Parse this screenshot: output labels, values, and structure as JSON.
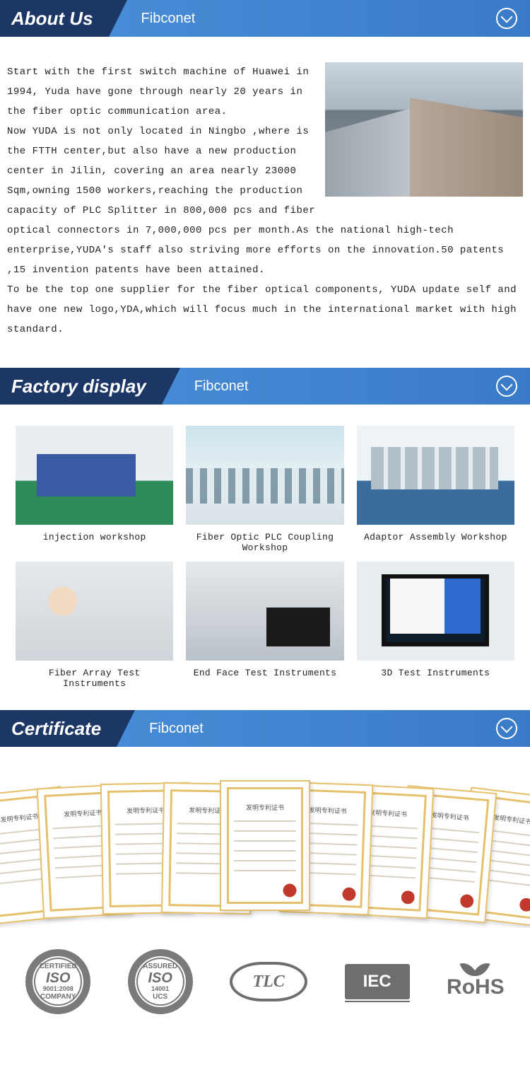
{
  "brand": "Fibconet",
  "colors": {
    "header_dark": "#1c3766",
    "header_grad_from": "#4a90d9",
    "header_grad_to": "#3a7bc8",
    "text": "#222222",
    "badge_gray": "#6e6e6e",
    "cert_border": "#e6c06a"
  },
  "sections": {
    "about": {
      "title": "About Us"
    },
    "factory": {
      "title": "Factory display"
    },
    "certificate": {
      "title": "Certificate"
    }
  },
  "about_text": "Start with the first switch machine of Huawei in 1994, Yuda have gone through nearly 20 years in the fiber optic communication area.\nNow YUDA is not only located in Ningbo ,where is the FTTH center,but also have a new production center in Jilin, covering an area nearly 23000 Sqm,owning 1500 workers,reaching the production capacity  of  PLC Splitter in 800,000 pcs and fiber optical connectors in 7,000,000 pcs per month.As the national high-tech enterprise,YUDA's staff also striving more efforts on the innovation.50 patents ,15 invention patents have been attained.\nTo be the top one supplier for the fiber optical components, YUDA update self and have one new logo,YDA,which will focus much in the international market with high standard.",
  "gallery": [
    {
      "caption": "injection workshop",
      "cls": "ws-inj"
    },
    {
      "caption": "Fiber Optic PLC Coupling Workshop",
      "cls": "ws-plc"
    },
    {
      "caption": "Adaptor Assembly Workshop",
      "cls": "ws-adp"
    },
    {
      "caption": "Fiber Array Test Instruments",
      "cls": "ws-arr"
    },
    {
      "caption": "End Face Test Instruments",
      "cls": "ws-end"
    },
    {
      "caption": "3D Test Instruments",
      "cls": "ws-3d"
    }
  ],
  "cert_doc_title": "发明专利证书",
  "cert_count": 9,
  "badges": {
    "iso1": {
      "top": "CERTIFIED",
      "big": "ISO",
      "sub": "9001:2008",
      "bottom": "COMPANY"
    },
    "iso2": {
      "top": "ASSURED",
      "big": "ISO",
      "sub": "14001",
      "bottom": "UCS"
    },
    "tlc": "TLC",
    "iec": "IEC",
    "rohs": "RoHS"
  }
}
